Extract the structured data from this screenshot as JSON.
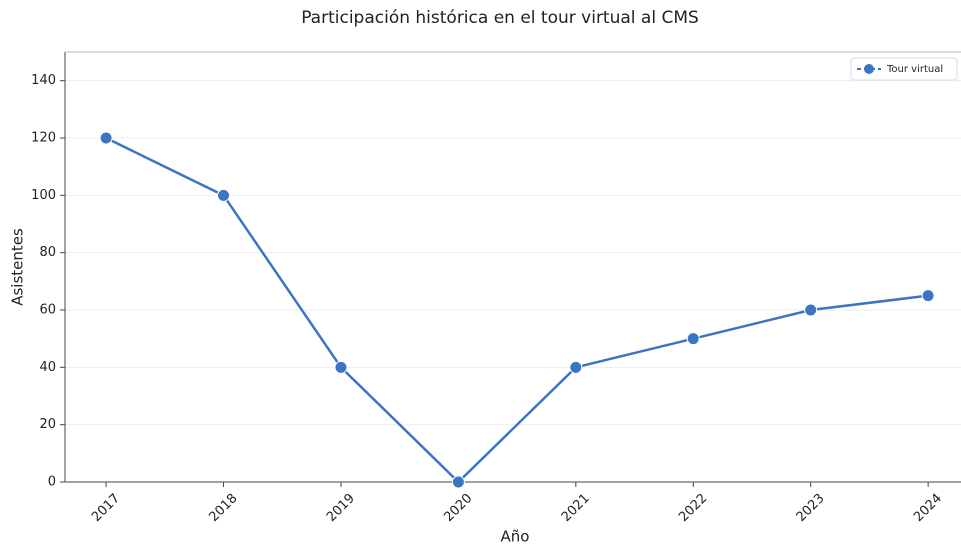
{
  "chart_data": {
    "type": "line",
    "title": "Participación histórica en el tour virtual al CMS",
    "xlabel": "Año",
    "ylabel": "Asistentes",
    "x": [
      2017,
      2018,
      2019,
      2020,
      2021,
      2022,
      2023,
      2024
    ],
    "series": [
      {
        "name": "Tour virtual",
        "color": "#3a74c4",
        "values": [
          120,
          100,
          40,
          0,
          40,
          50,
          60,
          65
        ]
      }
    ],
    "xlim": [
      2016.65,
      2024.28
    ],
    "xticks": [
      2017,
      2018,
      2019,
      2020,
      2021,
      2022,
      2023,
      2024
    ],
    "ylim": [
      0,
      150
    ],
    "yticks": [
      0,
      20,
      40,
      60,
      80,
      100,
      120,
      140
    ],
    "grid": true,
    "legend": "upper right"
  }
}
